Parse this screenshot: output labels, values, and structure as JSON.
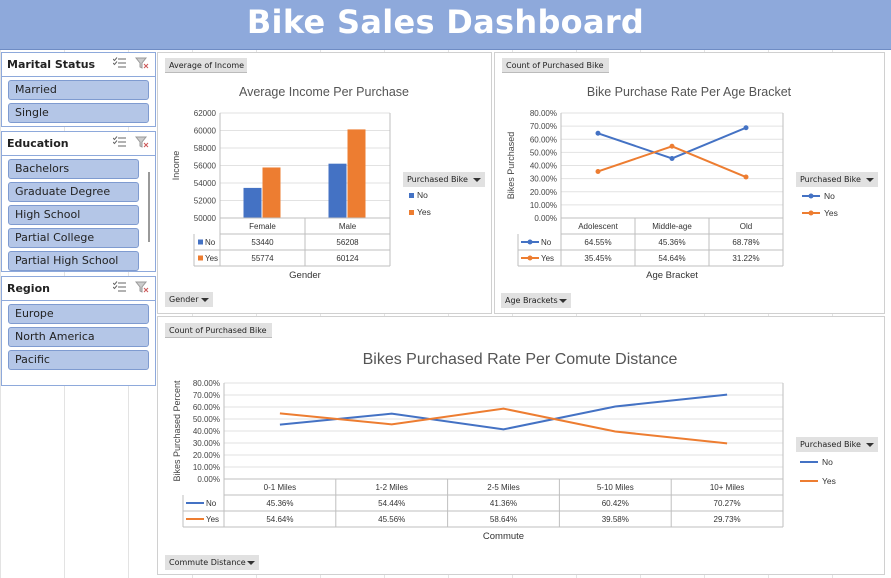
{
  "title": "Bike Sales Dashboard",
  "slicers": [
    {
      "id": "marital",
      "title": "Marital Status",
      "items": [
        "Married",
        "Single"
      ]
    },
    {
      "id": "education",
      "title": "Education",
      "items": [
        "Bachelors",
        "Graduate Degree",
        "High School",
        "Partial College",
        "Partial High School"
      ]
    },
    {
      "id": "region",
      "title": "Region",
      "items": [
        "Europe",
        "North America",
        "Pacific"
      ]
    }
  ],
  "colors": {
    "no": "#4472c4",
    "yes": "#ed7d31",
    "header": "#8ea9db",
    "slicer_item": "#b4c6e7"
  },
  "chart_data": [
    {
      "type": "bar",
      "value_button": "Average of Income",
      "title": "Average Income Per Purchase",
      "xlabel": "Gender",
      "ylabel": "Income",
      "axis_button": "Gender",
      "legend_title": "Purchased Bike",
      "categories": [
        "Female",
        "Male"
      ],
      "ylim": [
        50000,
        62000
      ],
      "yticks": [
        "62000",
        "60000",
        "58000",
        "56000",
        "54000",
        "52000",
        "50000"
      ],
      "series": [
        {
          "name": "No",
          "values": [
            53440,
            56208
          ],
          "labels": [
            "53440",
            "56208"
          ]
        },
        {
          "name": "Yes",
          "values": [
            55774,
            60124
          ],
          "labels": [
            "55774",
            "60124"
          ]
        }
      ]
    },
    {
      "type": "line",
      "value_button": "Count of Purchased Bike",
      "title": "Bike Purchase Rate Per Age Bracket",
      "xlabel": "Age Bracket",
      "ylabel": "Bikes Purchased",
      "axis_button": "Age Brackets",
      "legend_title": "Purchased Bike",
      "categories": [
        "Adolescent",
        "Middle-age",
        "Old"
      ],
      "ylim": [
        0,
        0.8
      ],
      "yticks": [
        "80.00%",
        "70.00%",
        "60.00%",
        "50.00%",
        "40.00%",
        "30.00%",
        "20.00%",
        "10.00%",
        "0.00%"
      ],
      "series": [
        {
          "name": "No",
          "values": [
            0.6455,
            0.4536,
            0.6878
          ],
          "labels": [
            "64.55%",
            "45.36%",
            "68.78%"
          ]
        },
        {
          "name": "Yes",
          "values": [
            0.3545,
            0.5464,
            0.3122
          ],
          "labels": [
            "35.45%",
            "54.64%",
            "31.22%"
          ]
        }
      ]
    },
    {
      "type": "line",
      "value_button": "Count of Purchased Bike",
      "title": "Bikes Purchased Rate Per Comute Distance",
      "xlabel": "Commute",
      "ylabel": "Bikes Purchased Percent",
      "axis_button": "Commute Distance",
      "legend_title": "Purchased Bike",
      "categories": [
        "0-1 Miles",
        "1-2 Miles",
        "2-5 Miles",
        "5-10 Miles",
        "10+ Miles"
      ],
      "ylim": [
        0,
        0.8
      ],
      "yticks": [
        "80.00%",
        "70.00%",
        "60.00%",
        "50.00%",
        "40.00%",
        "30.00%",
        "20.00%",
        "10.00%",
        "0.00%"
      ],
      "series": [
        {
          "name": "No",
          "values": [
            0.4536,
            0.5444,
            0.4136,
            0.6042,
            0.7027
          ],
          "labels": [
            "45.36%",
            "54.44%",
            "41.36%",
            "60.42%",
            "70.27%"
          ]
        },
        {
          "name": "Yes",
          "values": [
            0.5464,
            0.4556,
            0.5864,
            0.3958,
            0.2973
          ],
          "labels": [
            "54.64%",
            "45.56%",
            "58.64%",
            "39.58%",
            "29.73%"
          ]
        }
      ]
    }
  ]
}
